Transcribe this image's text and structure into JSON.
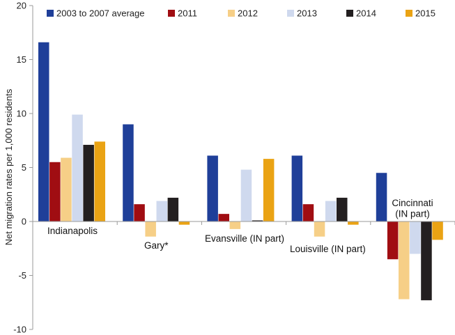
{
  "chart_data": {
    "type": "bar",
    "ylabel": "Net migration rates per 1,000 residents",
    "ylim": [
      -10,
      20
    ],
    "yticks": [
      -10,
      -5,
      0,
      5,
      10,
      15,
      20
    ],
    "grid": false,
    "legend_position": "top",
    "categories": [
      "Indianapolis",
      "Gary*",
      "Evansville (IN part)",
      "Louisville (IN part)",
      "Cincinnati (IN part)"
    ],
    "category_label_lines": [
      [
        "Indianapolis"
      ],
      [
        "Gary*"
      ],
      [
        "Evansville (IN part)"
      ],
      [
        "Louisville (IN part)"
      ],
      [
        "Cincinnati",
        "(IN part)"
      ]
    ],
    "series": [
      {
        "name": "2003 to 2007 average",
        "color": "#1f3f99",
        "values": [
          16.6,
          9.0,
          6.1,
          6.1,
          4.5
        ]
      },
      {
        "name": "2011",
        "color": "#a00d12",
        "values": [
          5.5,
          1.6,
          0.7,
          1.6,
          -3.5
        ]
      },
      {
        "name": "2012",
        "color": "#f6cf87",
        "values": [
          5.9,
          -1.4,
          -0.7,
          -1.4,
          -7.2
        ]
      },
      {
        "name": "2013",
        "color": "#cfd9ee",
        "values": [
          9.9,
          1.9,
          4.8,
          1.9,
          -3.0
        ]
      },
      {
        "name": "2014",
        "color": "#231f20",
        "values": [
          7.1,
          2.2,
          0.1,
          2.2,
          -7.3
        ]
      },
      {
        "name": "2015",
        "color": "#eaa314",
        "values": [
          7.4,
          -0.3,
          5.8,
          -0.3,
          -1.7
        ]
      }
    ]
  }
}
